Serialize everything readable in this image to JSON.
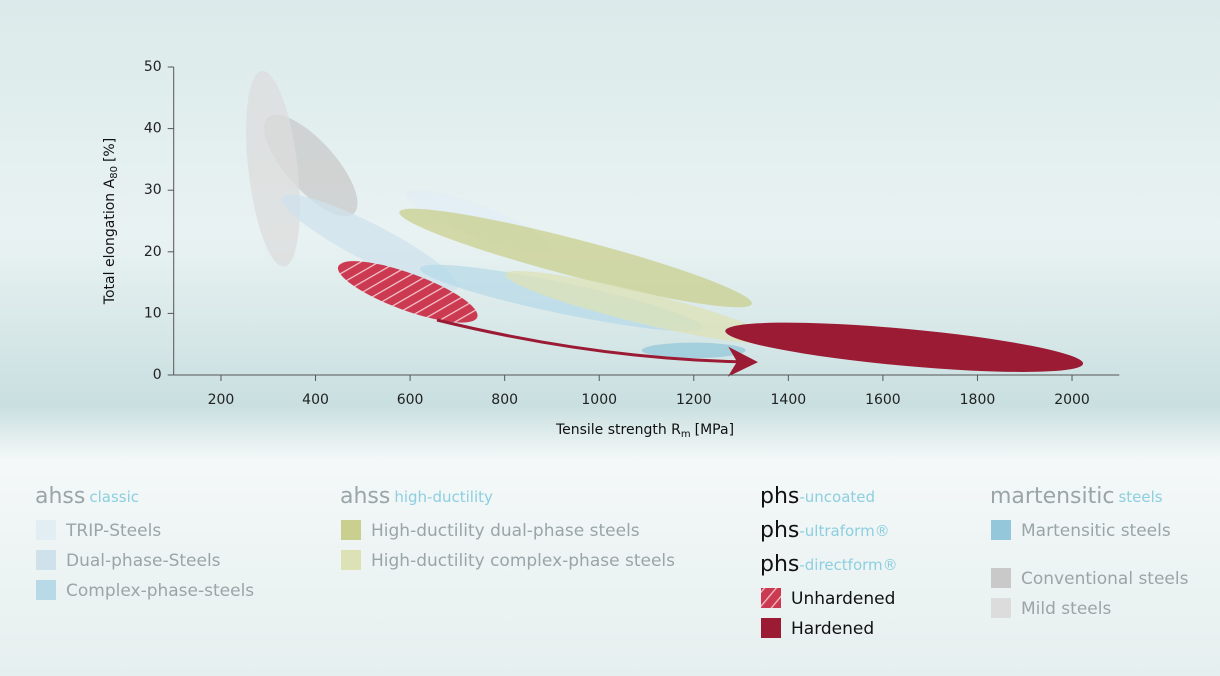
{
  "chart_data": {
    "type": "ellipse",
    "xlabel": {
      "text": "Tensile strength R",
      "sub": "m",
      "after": "[MPa]"
    },
    "ylabel": {
      "text": "Total elongation A",
      "sub": "80",
      "after": "[%]"
    },
    "xlim": [
      100,
      2100
    ],
    "ylim": [
      0,
      50
    ],
    "xticks": [
      200,
      400,
      600,
      800,
      1000,
      1200,
      1400,
      1600,
      1800,
      2000
    ],
    "yticks": [
      0,
      10,
      20,
      30,
      40,
      50
    ],
    "groups": [
      {
        "titles": [
          {
            "main": "ahss",
            "sub": "classic"
          }
        ],
        "series": [
          {
            "name": "TRIP-Steels",
            "color": "#e2edf4",
            "x": [
              610,
              880
            ],
            "y": [
              29,
              21
            ],
            "spread": 5
          },
          {
            "name": "Dual-phase-Steels",
            "color": "#cfe2ec",
            "x": [
              350,
              680
            ],
            "y": [
              28,
              15
            ],
            "spread": 6
          },
          {
            "name": "Complex-phase-steels",
            "color": "#b7d9e8",
            "x": [
              640,
              1200
            ],
            "y": [
              17,
              8
            ],
            "spread": 5
          }
        ]
      },
      {
        "titles": [
          {
            "main": "ahss",
            "sub": "high-ductility"
          }
        ],
        "series": [
          {
            "name": "High-ductility dual-phase steels",
            "color": "#c9cf8e",
            "x": [
              600,
              1300
            ],
            "y": [
              26,
              12
            ],
            "spread": 6
          },
          {
            "name": "High-ductility complex-phase steels",
            "color": "#dce1b6",
            "x": [
              820,
              1350
            ],
            "y": [
              16,
              6
            ],
            "spread": 5
          }
        ]
      },
      {
        "titles": [
          {
            "main": "phs",
            "sub": "-uncoated"
          },
          {
            "main": "phs",
            "sub": "-ultraform®"
          },
          {
            "main": "phs",
            "sub": "-directform®"
          }
        ],
        "series": [
          {
            "name": "Unhardened",
            "color": "#cc3a52",
            "pattern": "hatch",
            "x": [
              470,
              720
            ],
            "y": [
              17,
              10
            ],
            "spread": 6
          },
          {
            "name": "Hardened",
            "color": "#9b1b35",
            "x": [
              1290,
              2000
            ],
            "y": [
              7,
              2
            ],
            "spread": 6
          }
        ]
      },
      {
        "titles": [
          {
            "main": "martensitic",
            "sub": "steels"
          }
        ],
        "series": [
          {
            "name": "Martensitic steels",
            "color": "#94c7da",
            "x": [
              1100,
              1300
            ],
            "y": [
              4,
              4
            ],
            "spread": 2.5
          },
          {
            "name": "Conventional steels",
            "color": "#c9c9c9",
            "x": [
              320,
              460
            ],
            "y": [
              40,
              28
            ],
            "spread": 8
          },
          {
            "name": "Mild steels",
            "color": "#dcdcdc",
            "x": [
              290,
              330
            ],
            "y": [
              47,
              20
            ],
            "spread": 8
          }
        ]
      }
    ]
  }
}
